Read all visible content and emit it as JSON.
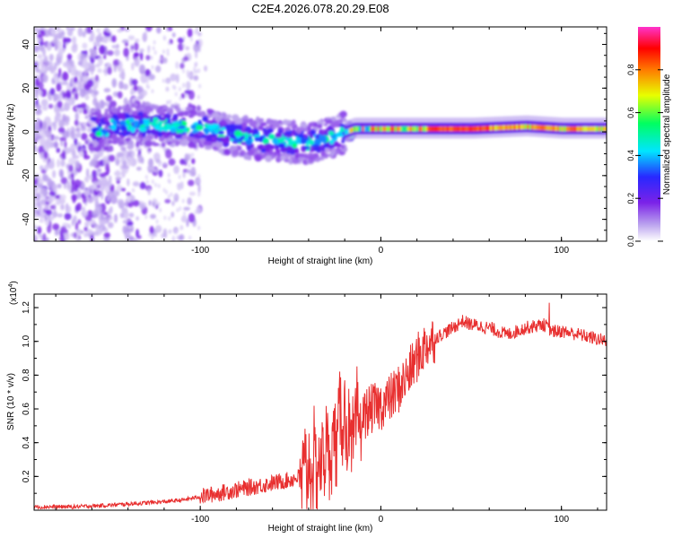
{
  "chart_data": [
    {
      "type": "heatmap",
      "title": "C2E4.2026.078.20.29.E08",
      "xlabel": "Height of straight line (km)",
      "ylabel": "Frequency (Hz)",
      "xlim": [
        -192,
        125
      ],
      "ylim": [
        -50,
        48
      ],
      "xticks": [
        -100,
        0,
        100
      ],
      "yticks": [
        -40,
        -20,
        0,
        20,
        40
      ],
      "colorbar": {
        "label": "Normalized spectral amplitude",
        "range": [
          0.0,
          1.0
        ],
        "ticks": [
          "0.0",
          "0.2",
          "0.4",
          "0.6",
          "0.8"
        ],
        "colormap": [
          "#ffffff",
          "#b9a0ee",
          "#7b22e8",
          "#2828ff",
          "#00e5ff",
          "#00ff60",
          "#e8ff00",
          "#ff7a00",
          "#ff0000",
          "#ff33cc"
        ]
      },
      "signal_center_hz": [
        {
          "x": -150,
          "y": 4
        },
        {
          "x": -120,
          "y": 3
        },
        {
          "x": -100,
          "y": 2
        },
        {
          "x": -80,
          "y": -2
        },
        {
          "x": -60,
          "y": -4
        },
        {
          "x": -40,
          "y": -5
        },
        {
          "x": -25,
          "y": -2
        },
        {
          "x": -15,
          "y": 1
        },
        {
          "x": 0,
          "y": 1
        },
        {
          "x": 20,
          "y": 1
        },
        {
          "x": 50,
          "y": 1
        },
        {
          "x": 80,
          "y": 2
        },
        {
          "x": 100,
          "y": 1
        },
        {
          "x": 125,
          "y": 1
        }
      ]
    },
    {
      "type": "line",
      "xlabel": "Height of straight line (km)",
      "ylabel": "SNR (10 * v/v)",
      "multiplier": "(x10",
      "multiplier_exp": "4",
      "xlim": [
        -192,
        125
      ],
      "ylim": [
        0,
        1.28
      ],
      "xticks": [
        -100,
        0,
        100
      ],
      "yticks": [
        "0.2",
        "0.4",
        "0.6",
        "0.8",
        "1.0",
        "1.2"
      ],
      "color": "#e83030",
      "series": [
        {
          "name": "SNR",
          "x": [
            -192,
            -170,
            -150,
            -135,
            -120,
            -110,
            -100,
            -90,
            -80,
            -70,
            -60,
            -50,
            -45,
            -40,
            -35,
            -30,
            -25,
            -22,
            -20,
            -18,
            -16,
            -15,
            -14,
            -12,
            -10,
            -8,
            -5,
            0,
            5,
            10,
            15,
            20,
            25,
            30,
            40,
            45,
            50,
            60,
            70,
            80,
            90,
            95,
            100,
            110,
            125
          ],
          "values": [
            0.02,
            0.02,
            0.03,
            0.04,
            0.05,
            0.06,
            0.08,
            0.1,
            0.12,
            0.14,
            0.16,
            0.18,
            0.2,
            0.24,
            0.28,
            0.34,
            0.42,
            0.55,
            0.6,
            0.4,
            0.3,
            0.35,
            0.5,
            0.52,
            0.55,
            0.58,
            0.6,
            0.62,
            0.66,
            0.72,
            0.8,
            0.9,
            0.98,
            1.02,
            1.08,
            1.12,
            1.1,
            1.08,
            1.04,
            1.08,
            1.1,
            1.06,
            1.06,
            1.04,
            1.0
          ]
        }
      ]
    }
  ]
}
